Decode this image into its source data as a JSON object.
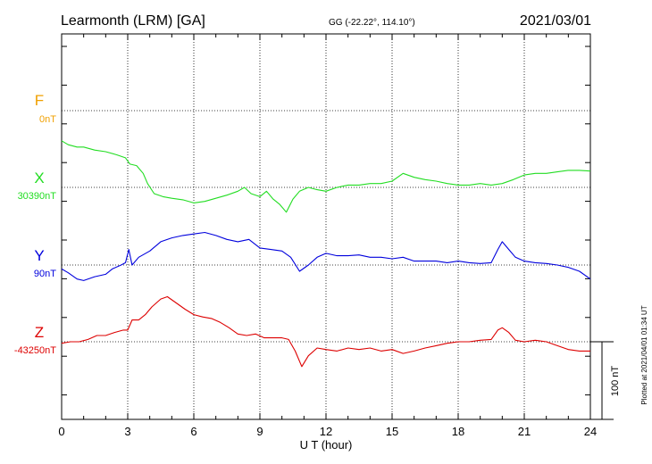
{
  "header": {
    "station": "Learmonth (LRM)  [GA]",
    "coords": "GG (-22.22°, 114.10°)",
    "date": "2021/03/01"
  },
  "plotted_note": "Plotted at 2021/04/01 01:34 UT",
  "scale_label": "100 nT",
  "chart_data": {
    "type": "line",
    "xlabel": "U T (hour)",
    "xlim": [
      0,
      24
    ],
    "x_ticks": [
      "0",
      "3",
      "6",
      "9",
      "12",
      "15",
      "18",
      "21",
      "24"
    ],
    "scale_nT": 100,
    "series": [
      {
        "name": "F",
        "baseline_label": "0nT",
        "color": "#f0a000",
        "x": [],
        "values": []
      },
      {
        "name": "X",
        "baseline_label": "30390nT",
        "color": "#22dd22",
        "x": [
          0,
          0.3,
          0.7,
          1.0,
          1.5,
          2.0,
          2.5,
          2.9,
          3.1,
          3.4,
          3.7,
          3.9,
          4.2,
          4.6,
          5.0,
          5.5,
          6.0,
          6.5,
          7.0,
          7.5,
          8.0,
          8.3,
          8.6,
          9.0,
          9.3,
          9.6,
          9.9,
          10.2,
          10.5,
          10.8,
          11.2,
          11.6,
          12.0,
          12.5,
          13.0,
          13.5,
          14.0,
          14.5,
          15.0,
          15.5,
          16.0,
          16.5,
          17.0,
          17.5,
          18.0,
          18.5,
          19.0,
          19.5,
          20.0,
          20.5,
          21.0,
          21.5,
          22.0,
          22.5,
          23.0,
          23.5,
          24.0
        ],
        "values": [
          60,
          55,
          52,
          52,
          48,
          46,
          42,
          38,
          30,
          28,
          18,
          5,
          -8,
          -12,
          -14,
          -16,
          -20,
          -18,
          -14,
          -10,
          -5,
          0,
          -8,
          -12,
          -5,
          -15,
          -22,
          -32,
          -15,
          -5,
          0,
          -3,
          -5,
          0,
          3,
          3,
          5,
          5,
          8,
          18,
          13,
          10,
          8,
          5,
          3,
          3,
          5,
          3,
          5,
          10,
          16,
          18,
          18,
          20,
          22,
          22,
          21
        ]
      },
      {
        "name": "Y",
        "baseline_label": "90nT",
        "color": "#0000dd",
        "x": [
          0,
          0.3,
          0.7,
          1.0,
          1.5,
          2.0,
          2.3,
          2.7,
          2.9,
          3.05,
          3.2,
          3.5,
          4.0,
          4.5,
          5.0,
          5.5,
          6.0,
          6.5,
          7.0,
          7.5,
          8.0,
          8.5,
          9.0,
          9.5,
          10.0,
          10.4,
          10.8,
          11.2,
          11.6,
          12.0,
          12.5,
          13.0,
          13.5,
          14.0,
          14.5,
          15.0,
          15.5,
          16.0,
          16.5,
          17.0,
          17.5,
          18.0,
          18.5,
          19.0,
          19.5,
          19.8,
          20.0,
          20.3,
          20.6,
          21.0,
          21.5,
          22.0,
          22.5,
          23.0,
          23.5,
          24.0
        ],
        "values": [
          -5,
          -10,
          -18,
          -20,
          -15,
          -12,
          -5,
          0,
          3,
          20,
          0,
          10,
          18,
          30,
          35,
          38,
          40,
          42,
          38,
          33,
          30,
          33,
          22,
          20,
          18,
          10,
          -8,
          0,
          10,
          15,
          12,
          12,
          13,
          10,
          10,
          8,
          10,
          5,
          5,
          5,
          3,
          5,
          3,
          2,
          3,
          20,
          30,
          20,
          10,
          5,
          3,
          2,
          0,
          -3,
          -8,
          -18
        ]
      },
      {
        "name": "Z",
        "baseline_label": "-43250nT",
        "color": "#dd0000",
        "x": [
          0,
          0.4,
          0.8,
          1.2,
          1.6,
          2.0,
          2.4,
          2.8,
          3.0,
          3.2,
          3.5,
          3.8,
          4.1,
          4.5,
          4.8,
          5.2,
          5.6,
          6.0,
          6.4,
          6.8,
          7.2,
          7.6,
          8.0,
          8.4,
          8.8,
          9.2,
          9.6,
          10.0,
          10.3,
          10.6,
          10.9,
          11.2,
          11.6,
          12.0,
          12.5,
          13.0,
          13.5,
          14.0,
          14.5,
          15.0,
          15.5,
          16.0,
          16.5,
          17.0,
          17.5,
          18.0,
          18.5,
          19.0,
          19.5,
          19.8,
          20.0,
          20.3,
          20.6,
          21.0,
          21.5,
          22.0,
          22.5,
          23.0,
          23.5,
          24.0
        ],
        "values": [
          -2,
          0,
          0,
          3,
          8,
          8,
          12,
          15,
          15,
          28,
          28,
          35,
          45,
          55,
          58,
          50,
          42,
          35,
          32,
          30,
          25,
          18,
          10,
          8,
          10,
          5,
          5,
          5,
          3,
          -12,
          -32,
          -18,
          -8,
          -10,
          -12,
          -8,
          -10,
          -8,
          -12,
          -10,
          -15,
          -12,
          -8,
          -5,
          -2,
          0,
          0,
          2,
          3,
          15,
          18,
          12,
          2,
          0,
          2,
          0,
          -5,
          -10,
          -12,
          -12
        ]
      }
    ]
  }
}
